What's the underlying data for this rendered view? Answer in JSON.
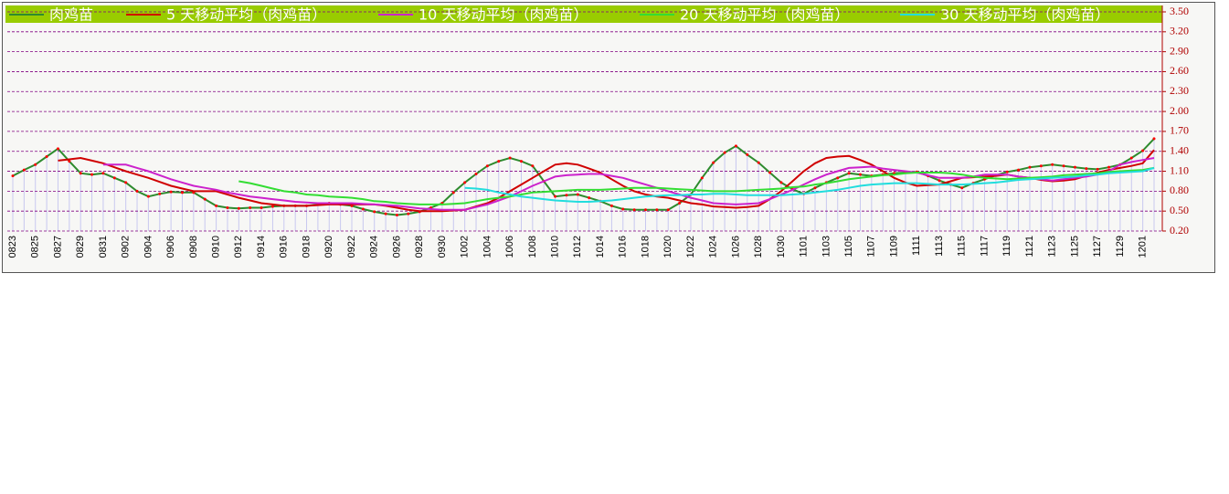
{
  "chart_data": {
    "type": "line",
    "categories": [
      "0823",
      null,
      "0825",
      null,
      "0827",
      null,
      "0829",
      null,
      "0831",
      null,
      "0902",
      null,
      "0904",
      null,
      "0906",
      null,
      "0908",
      null,
      "0910",
      null,
      "0912",
      null,
      "0914",
      null,
      "0916",
      null,
      "0918",
      null,
      "0920",
      null,
      "0922",
      null,
      "0924",
      null,
      "0926",
      null,
      "0928",
      null,
      "0930",
      null,
      "1002",
      null,
      "1004",
      null,
      "1006",
      null,
      "1008",
      null,
      "1010",
      null,
      "1012",
      null,
      "1014",
      null,
      "1016",
      null,
      "1018",
      null,
      "1020",
      null,
      "1022",
      null,
      "1024",
      null,
      "1026",
      null,
      "1028",
      null,
      "1030",
      null,
      "1101",
      null,
      "1103",
      null,
      "1105",
      null,
      "1107",
      null,
      "1109",
      null,
      "1111",
      null,
      "1113",
      null,
      "1115",
      null,
      "1117",
      null,
      "1119",
      null,
      "1121",
      null,
      "1123",
      null,
      "1125",
      null,
      "1127",
      null,
      "1129",
      null,
      "1201",
      null
    ],
    "series": [
      {
        "name": "肉鸡苗",
        "color": "#2e8b2e",
        "values": [
          1.03,
          1.12,
          1.2,
          1.32,
          1.44,
          1.25,
          1.07,
          1.05,
          1.07,
          1.0,
          0.93,
          0.8,
          0.72,
          0.76,
          0.79,
          0.78,
          0.78,
          0.68,
          0.58,
          0.55,
          0.54,
          0.55,
          0.55,
          0.57,
          0.58,
          0.58,
          0.58,
          0.6,
          0.62,
          0.6,
          0.58,
          0.53,
          0.49,
          0.46,
          0.44,
          0.46,
          0.49,
          0.55,
          0.62,
          0.78,
          0.93,
          1.06,
          1.18,
          1.25,
          1.3,
          1.25,
          1.18,
          0.95,
          0.72,
          0.74,
          0.75,
          0.7,
          0.65,
          0.58,
          0.53,
          0.52,
          0.52,
          0.52,
          0.52,
          0.62,
          0.75,
          1.0,
          1.23,
          1.38,
          1.48,
          1.35,
          1.23,
          1.08,
          0.93,
          0.83,
          0.76,
          0.85,
          0.93,
          1.0,
          1.07,
          1.05,
          1.03,
          1.05,
          1.07,
          1.08,
          1.09,
          1.03,
          0.96,
          0.9,
          0.85,
          0.92,
          0.98,
          1.04,
          1.09,
          1.12,
          1.16,
          1.18,
          1.2,
          1.18,
          1.16,
          1.14,
          1.13,
          1.16,
          1.2,
          1.3,
          1.41,
          1.59
        ]
      },
      {
        "name": "5 天移动平均（肉鸡苗）",
        "color": "#d00000",
        "values": [
          null,
          null,
          null,
          null,
          1.26,
          1.28,
          1.3,
          1.26,
          1.22,
          1.16,
          1.1,
          1.05,
          1.0,
          0.94,
          0.88,
          0.84,
          0.8,
          0.8,
          0.8,
          0.75,
          0.7,
          0.66,
          0.62,
          0.6,
          0.58,
          0.58,
          0.58,
          0.59,
          0.6,
          0.6,
          0.6,
          0.6,
          0.6,
          0.58,
          0.55,
          0.52,
          0.5,
          0.5,
          0.5,
          0.51,
          0.52,
          0.57,
          0.62,
          0.7,
          0.8,
          0.9,
          1.0,
          1.1,
          1.2,
          1.22,
          1.2,
          1.14,
          1.08,
          0.98,
          0.88,
          0.8,
          0.75,
          0.72,
          0.7,
          0.66,
          0.62,
          0.6,
          0.57,
          0.56,
          0.55,
          0.56,
          0.58,
          0.68,
          0.8,
          0.95,
          1.1,
          1.22,
          1.3,
          1.32,
          1.33,
          1.27,
          1.2,
          1.1,
          1.0,
          0.93,
          0.88,
          0.89,
          0.9,
          0.95,
          1.0,
          1.01,
          1.02,
          1.03,
          1.05,
          1.02,
          1.0,
          0.97,
          0.95,
          0.96,
          0.98,
          1.03,
          1.08,
          1.12,
          1.15,
          1.18,
          1.22,
          1.42
        ]
      },
      {
        "name": "10 天移动平均（肉鸡苗）",
        "color": "#cc22cc",
        "values": [
          null,
          null,
          null,
          null,
          null,
          null,
          null,
          null,
          1.2,
          1.2,
          1.2,
          1.15,
          1.1,
          1.04,
          0.98,
          0.93,
          0.88,
          0.85,
          0.82,
          0.78,
          0.75,
          0.72,
          0.7,
          0.68,
          0.66,
          0.64,
          0.63,
          0.62,
          0.62,
          0.62,
          0.62,
          0.61,
          0.6,
          0.59,
          0.58,
          0.56,
          0.54,
          0.53,
          0.52,
          0.52,
          0.52,
          0.56,
          0.6,
          0.66,
          0.72,
          0.8,
          0.88,
          0.95,
          1.02,
          1.04,
          1.05,
          1.06,
          1.06,
          1.03,
          1.0,
          0.95,
          0.9,
          0.85,
          0.8,
          0.75,
          0.7,
          0.66,
          0.62,
          0.61,
          0.6,
          0.61,
          0.62,
          0.68,
          0.75,
          0.82,
          0.9,
          0.98,
          1.05,
          1.1,
          1.15,
          1.16,
          1.17,
          1.14,
          1.12,
          1.1,
          1.08,
          1.04,
          1.0,
          1.0,
          1.0,
          1.02,
          1.05,
          1.05,
          1.05,
          1.02,
          1.0,
          0.98,
          0.96,
          0.98,
          1.0,
          1.02,
          1.05,
          1.1,
          1.2,
          1.24,
          1.27,
          1.3
        ]
      },
      {
        "name": "20 天移动平均（肉鸡苗）",
        "color": "#33dd33",
        "values": [
          null,
          null,
          null,
          null,
          null,
          null,
          null,
          null,
          null,
          null,
          null,
          null,
          null,
          null,
          null,
          null,
          null,
          null,
          null,
          null,
          0.95,
          0.92,
          0.88,
          0.84,
          0.8,
          0.78,
          0.75,
          0.74,
          0.72,
          0.71,
          0.7,
          0.68,
          0.65,
          0.64,
          0.62,
          0.61,
          0.6,
          0.6,
          0.6,
          0.61,
          0.62,
          0.65,
          0.68,
          0.7,
          0.72,
          0.75,
          0.78,
          0.79,
          0.8,
          0.81,
          0.82,
          0.82,
          0.82,
          0.83,
          0.84,
          0.85,
          0.85,
          0.85,
          0.84,
          0.83,
          0.82,
          0.81,
          0.8,
          0.8,
          0.8,
          0.81,
          0.82,
          0.83,
          0.84,
          0.86,
          0.87,
          0.9,
          0.92,
          0.95,
          0.98,
          1.0,
          1.02,
          1.04,
          1.05,
          1.07,
          1.08,
          1.08,
          1.08,
          1.07,
          1.05,
          1.02,
          1.0,
          0.99,
          0.98,
          0.99,
          1.0,
          1.01,
          1.02,
          1.04,
          1.05,
          1.06,
          1.07,
          1.09,
          1.1,
          1.11,
          1.12,
          1.15
        ]
      },
      {
        "name": "30 天移动平均（肉鸡苗）",
        "color": "#22dddd",
        "values": [
          null,
          null,
          null,
          null,
          null,
          null,
          null,
          null,
          null,
          null,
          null,
          null,
          null,
          null,
          null,
          null,
          null,
          null,
          null,
          null,
          null,
          null,
          null,
          null,
          null,
          null,
          null,
          null,
          null,
          null,
          null,
          null,
          null,
          null,
          null,
          null,
          null,
          null,
          null,
          null,
          0.85,
          0.84,
          0.82,
          0.78,
          0.75,
          0.72,
          0.7,
          0.68,
          0.66,
          0.65,
          0.64,
          0.64,
          0.65,
          0.66,
          0.68,
          0.7,
          0.72,
          0.73,
          0.74,
          0.74,
          0.75,
          0.75,
          0.76,
          0.76,
          0.75,
          0.74,
          0.74,
          0.74,
          0.74,
          0.75,
          0.76,
          0.78,
          0.8,
          0.82,
          0.85,
          0.88,
          0.9,
          0.91,
          0.92,
          0.92,
          0.92,
          0.91,
          0.9,
          0.9,
          0.9,
          0.91,
          0.92,
          0.93,
          0.95,
          0.97,
          0.98,
          0.99,
          1.0,
          1.01,
          1.02,
          1.04,
          1.05,
          1.07,
          1.08,
          1.09,
          1.1,
          1.15
        ]
      }
    ],
    "ylim": [
      0.2,
      3.5
    ],
    "yticks": [
      {
        "value": 0.2,
        "label": "0.20"
      },
      {
        "value": 0.5,
        "label": "0.50"
      },
      {
        "value": 0.8,
        "label": "0.80"
      },
      {
        "value": 1.1,
        "label": "1.10"
      },
      {
        "value": 1.4,
        "label": "1.40"
      },
      {
        "value": 1.7,
        "label": "1.70"
      },
      {
        "value": 2.0,
        "label": "2.00"
      },
      {
        "value": 2.3,
        "label": "2.30"
      },
      {
        "value": 2.6,
        "label": "2.60"
      },
      {
        "value": 2.9,
        "label": "2.90"
      },
      {
        "value": 3.2,
        "label": "3.20"
      },
      {
        "value": 3.5,
        "label": "3.50"
      }
    ],
    "grid": true,
    "legend": "top",
    "marker_color": "#ff0000",
    "bar_color": "#c8c8f0"
  }
}
